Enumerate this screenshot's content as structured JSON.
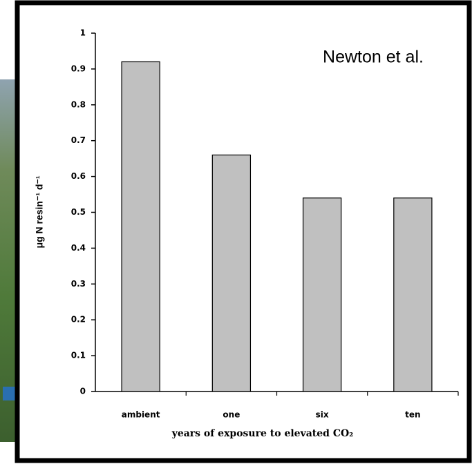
{
  "chart_data": {
    "type": "bar",
    "annotation": "Newton et al.",
    "xlabel": "years of exposure to elevated CO₂",
    "ylabel": "μg N resin⁻¹ d⁻¹",
    "categories": [
      "ambient",
      "one",
      "six",
      "ten"
    ],
    "values": [
      0.92,
      0.66,
      0.54,
      0.54
    ],
    "color": "#c0c0c0",
    "ylim": [
      0,
      1
    ],
    "yticks": [
      0,
      0.1,
      0.2,
      0.3,
      0.4,
      0.5,
      0.6,
      0.7,
      0.8,
      0.9,
      1
    ],
    "grid": false
  }
}
